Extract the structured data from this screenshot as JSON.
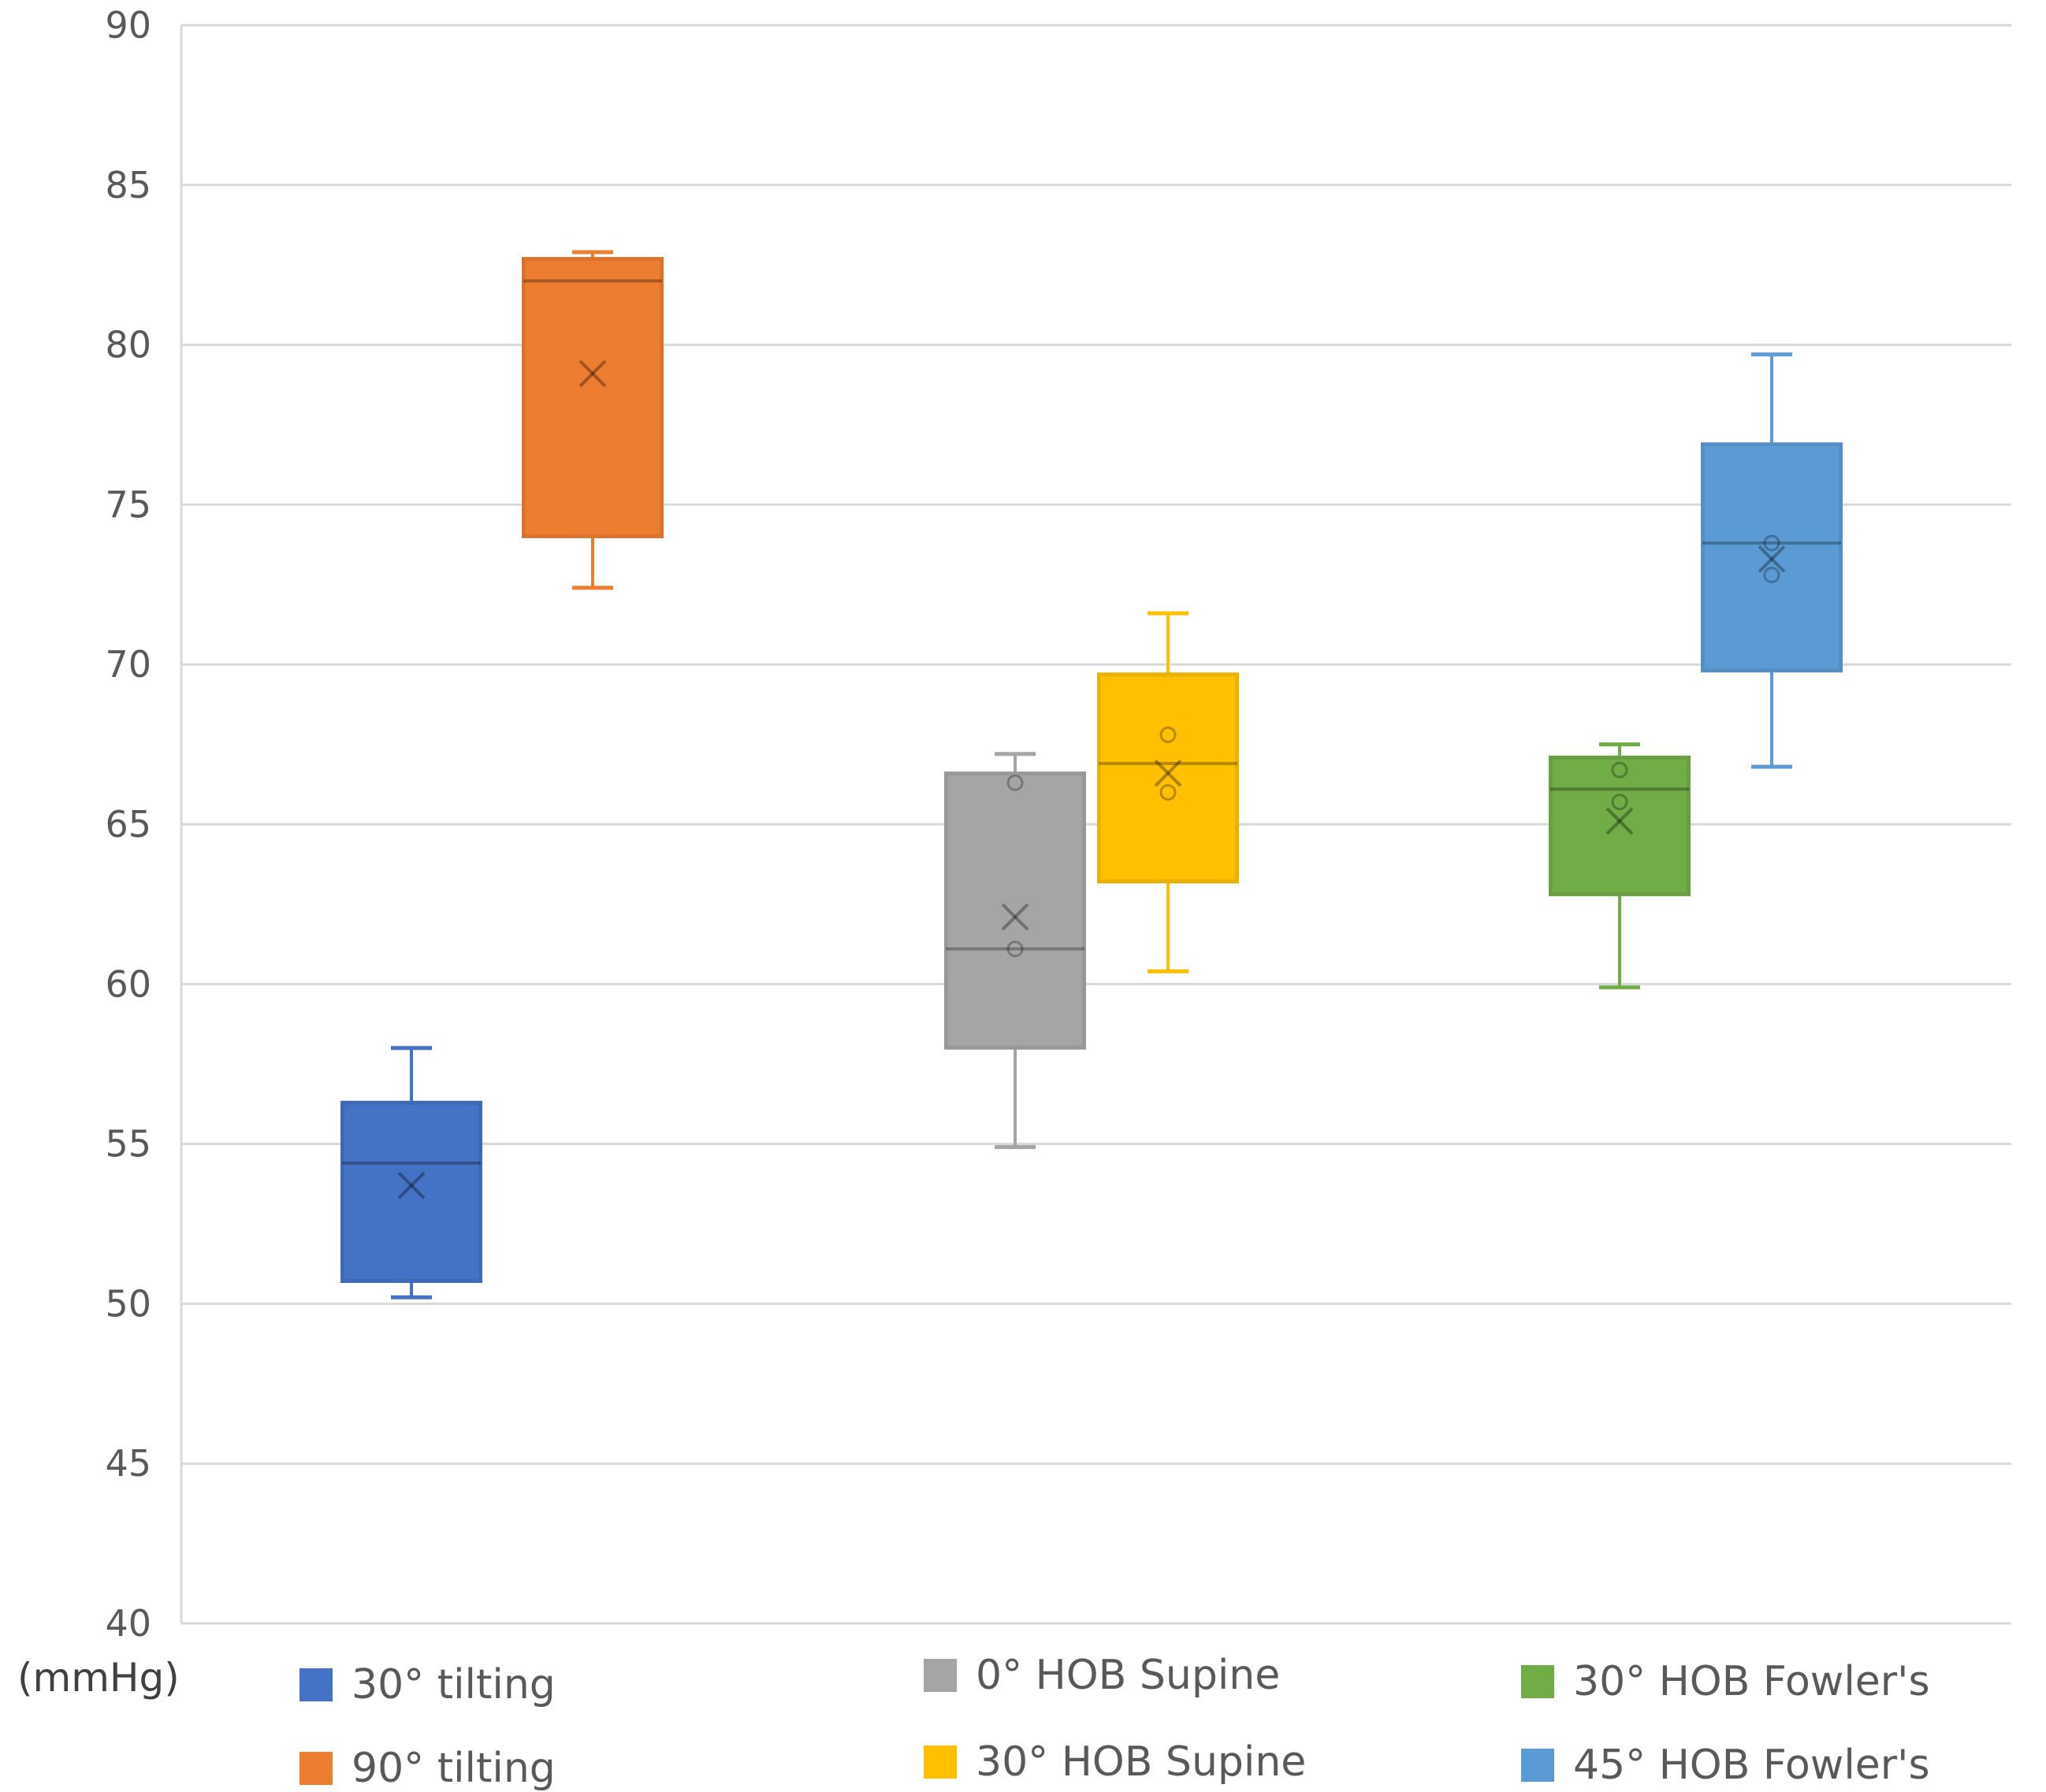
{
  "chart_data": {
    "type": "boxplot",
    "title": "",
    "xlabel": "",
    "ylabel": "(mmHg)",
    "ylim": [
      40,
      90
    ],
    "yticks": [
      40,
      45,
      50,
      55,
      60,
      65,
      70,
      75,
      80,
      85,
      90
    ],
    "grid": true,
    "legend_position": "bottom",
    "series": [
      {
        "name": "30° tilting",
        "color": "#4472C4",
        "min": 50.2,
        "q1": 50.7,
        "median": 54.4,
        "q3": 56.3,
        "max": 58.0,
        "mean": 53.7,
        "inner_points": []
      },
      {
        "name": "90° tilting",
        "color": "#ED7D31",
        "min": 72.4,
        "q1": 74.0,
        "median": 82.0,
        "q3": 82.7,
        "max": 82.9,
        "mean": 79.1,
        "inner_points": []
      },
      {
        "name": "0° HOB Supine",
        "color": "#A5A5A5",
        "min": 54.9,
        "q1": 58.0,
        "median": 61.1,
        "q3": 66.6,
        "max": 67.2,
        "mean": 62.1,
        "inner_points": [
          66.3,
          61.1
        ]
      },
      {
        "name": "30° HOB Supine",
        "color": "#FFC000",
        "min": 60.4,
        "q1": 63.2,
        "median": 66.9,
        "q3": 69.7,
        "max": 71.6,
        "mean": 66.6,
        "inner_points": [
          67.8,
          66.0
        ]
      },
      {
        "name": "30° HOB Fowler's",
        "color": "#70AD47",
        "min": 59.9,
        "q1": 62.8,
        "median": 66.1,
        "q3": 67.1,
        "max": 67.5,
        "mean": 65.1,
        "inner_points": [
          66.7,
          65.7
        ]
      },
      {
        "name": "45° HOB Fowler's",
        "color": "#5B9BD5",
        "min": 66.8,
        "q1": 69.8,
        "median": 73.8,
        "q3": 76.9,
        "max": 79.7,
        "mean": 73.3,
        "inner_points": [
          73.8,
          72.8
        ]
      }
    ]
  }
}
